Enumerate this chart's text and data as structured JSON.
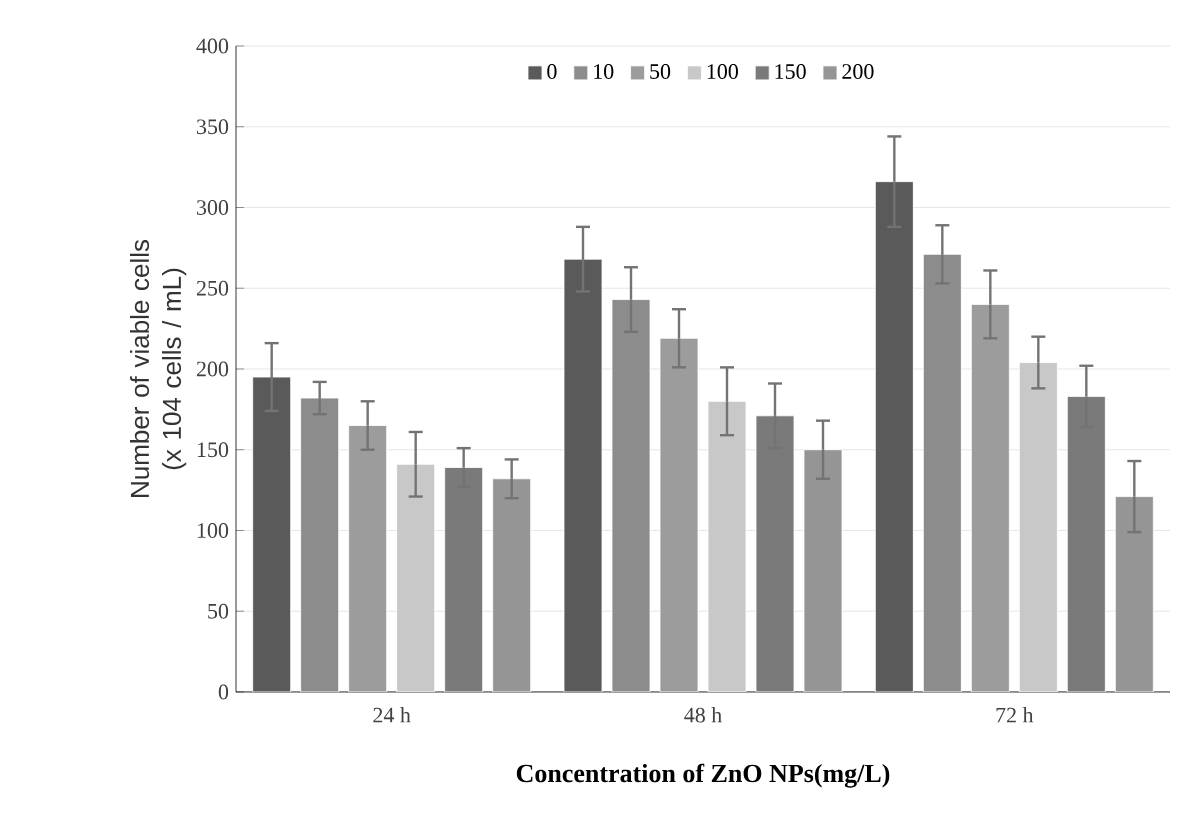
{
  "chart_data": {
    "type": "bar",
    "xlabel": "Concentration of ZnO NPs(mg/L)",
    "ylabel": "Number of viable cells (x 104 cells / mL)",
    "categories": [
      "24 h",
      "48 h",
      "72 h"
    ],
    "series": [
      {
        "name": "0",
        "color": "#5a5a5a",
        "values": [
          195,
          268,
          316
        ],
        "errors": [
          21,
          20,
          28
        ]
      },
      {
        "name": "10",
        "color": "#8c8c8c",
        "values": [
          182,
          243,
          271
        ],
        "errors": [
          10,
          20,
          18
        ]
      },
      {
        "name": "50",
        "color": "#9c9c9c",
        "values": [
          165,
          219,
          240
        ],
        "errors": [
          15,
          18,
          21
        ]
      },
      {
        "name": "100",
        "color": "#c8c8c8",
        "values": [
          141,
          180,
          204
        ],
        "errors": [
          20,
          21,
          16
        ]
      },
      {
        "name": "150",
        "color": "#7a7a7a",
        "values": [
          139,
          171,
          183
        ],
        "errors": [
          12,
          20,
          19
        ]
      },
      {
        "name": "200",
        "color": "#959595",
        "values": [
          132,
          150,
          121
        ],
        "errors": [
          12,
          18,
          22
        ]
      }
    ],
    "ylim": [
      0,
      400
    ],
    "yticks": [
      0,
      50,
      100,
      150,
      200,
      250,
      300,
      350,
      400
    ],
    "grid": "y",
    "legend": "top"
  }
}
